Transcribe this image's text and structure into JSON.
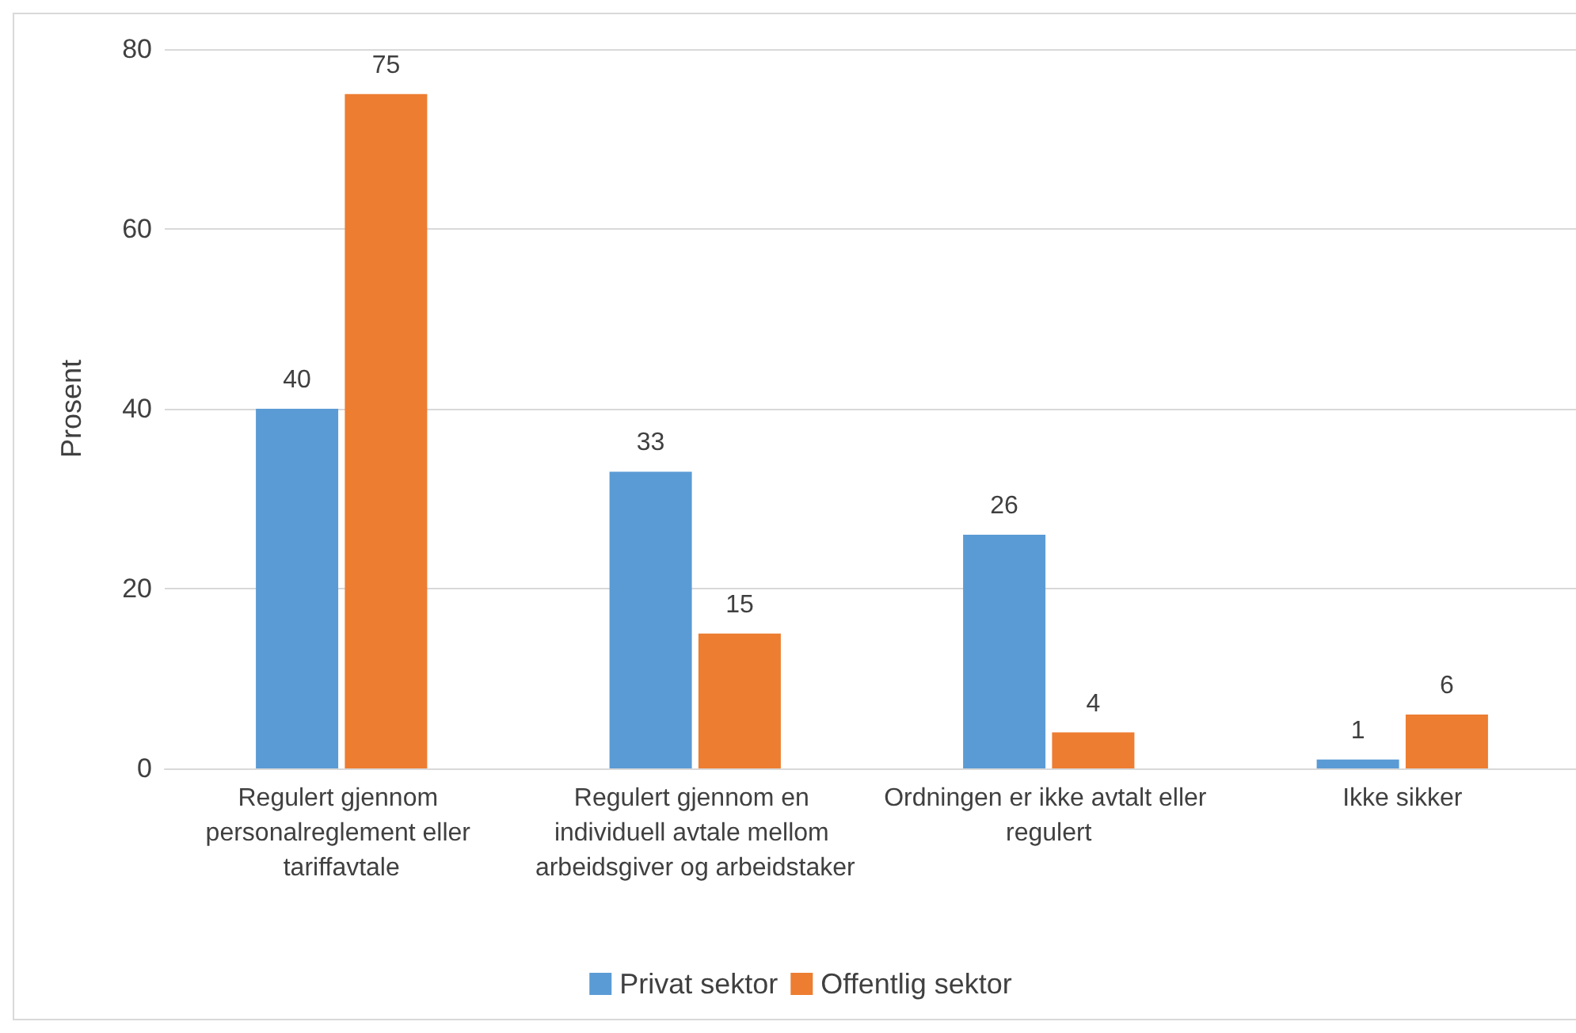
{
  "chart_data": {
    "type": "bar",
    "ylabel": "Prosent",
    "categories": [
      "Regulert gjennom personalreglement eller tariffavtale",
      "Regulert gjennom en individuell avtale mellom arbeidsgiver og arbeidstaker",
      "Ordningen er ikke avtalt eller regulert",
      "Ikke sikker"
    ],
    "series": [
      {
        "name": "Privat sektor",
        "color": "#5b9bd5",
        "values": [
          40,
          33,
          26,
          1
        ]
      },
      {
        "name": "Offentlig sektor",
        "color": "#ed7d31",
        "values": [
          75,
          15,
          4,
          6
        ]
      }
    ],
    "ylim": [
      0,
      80
    ],
    "yticks": [
      0,
      20,
      40,
      60,
      80
    ],
    "grid": "y",
    "legend": "bottom",
    "data_labels": true
  }
}
